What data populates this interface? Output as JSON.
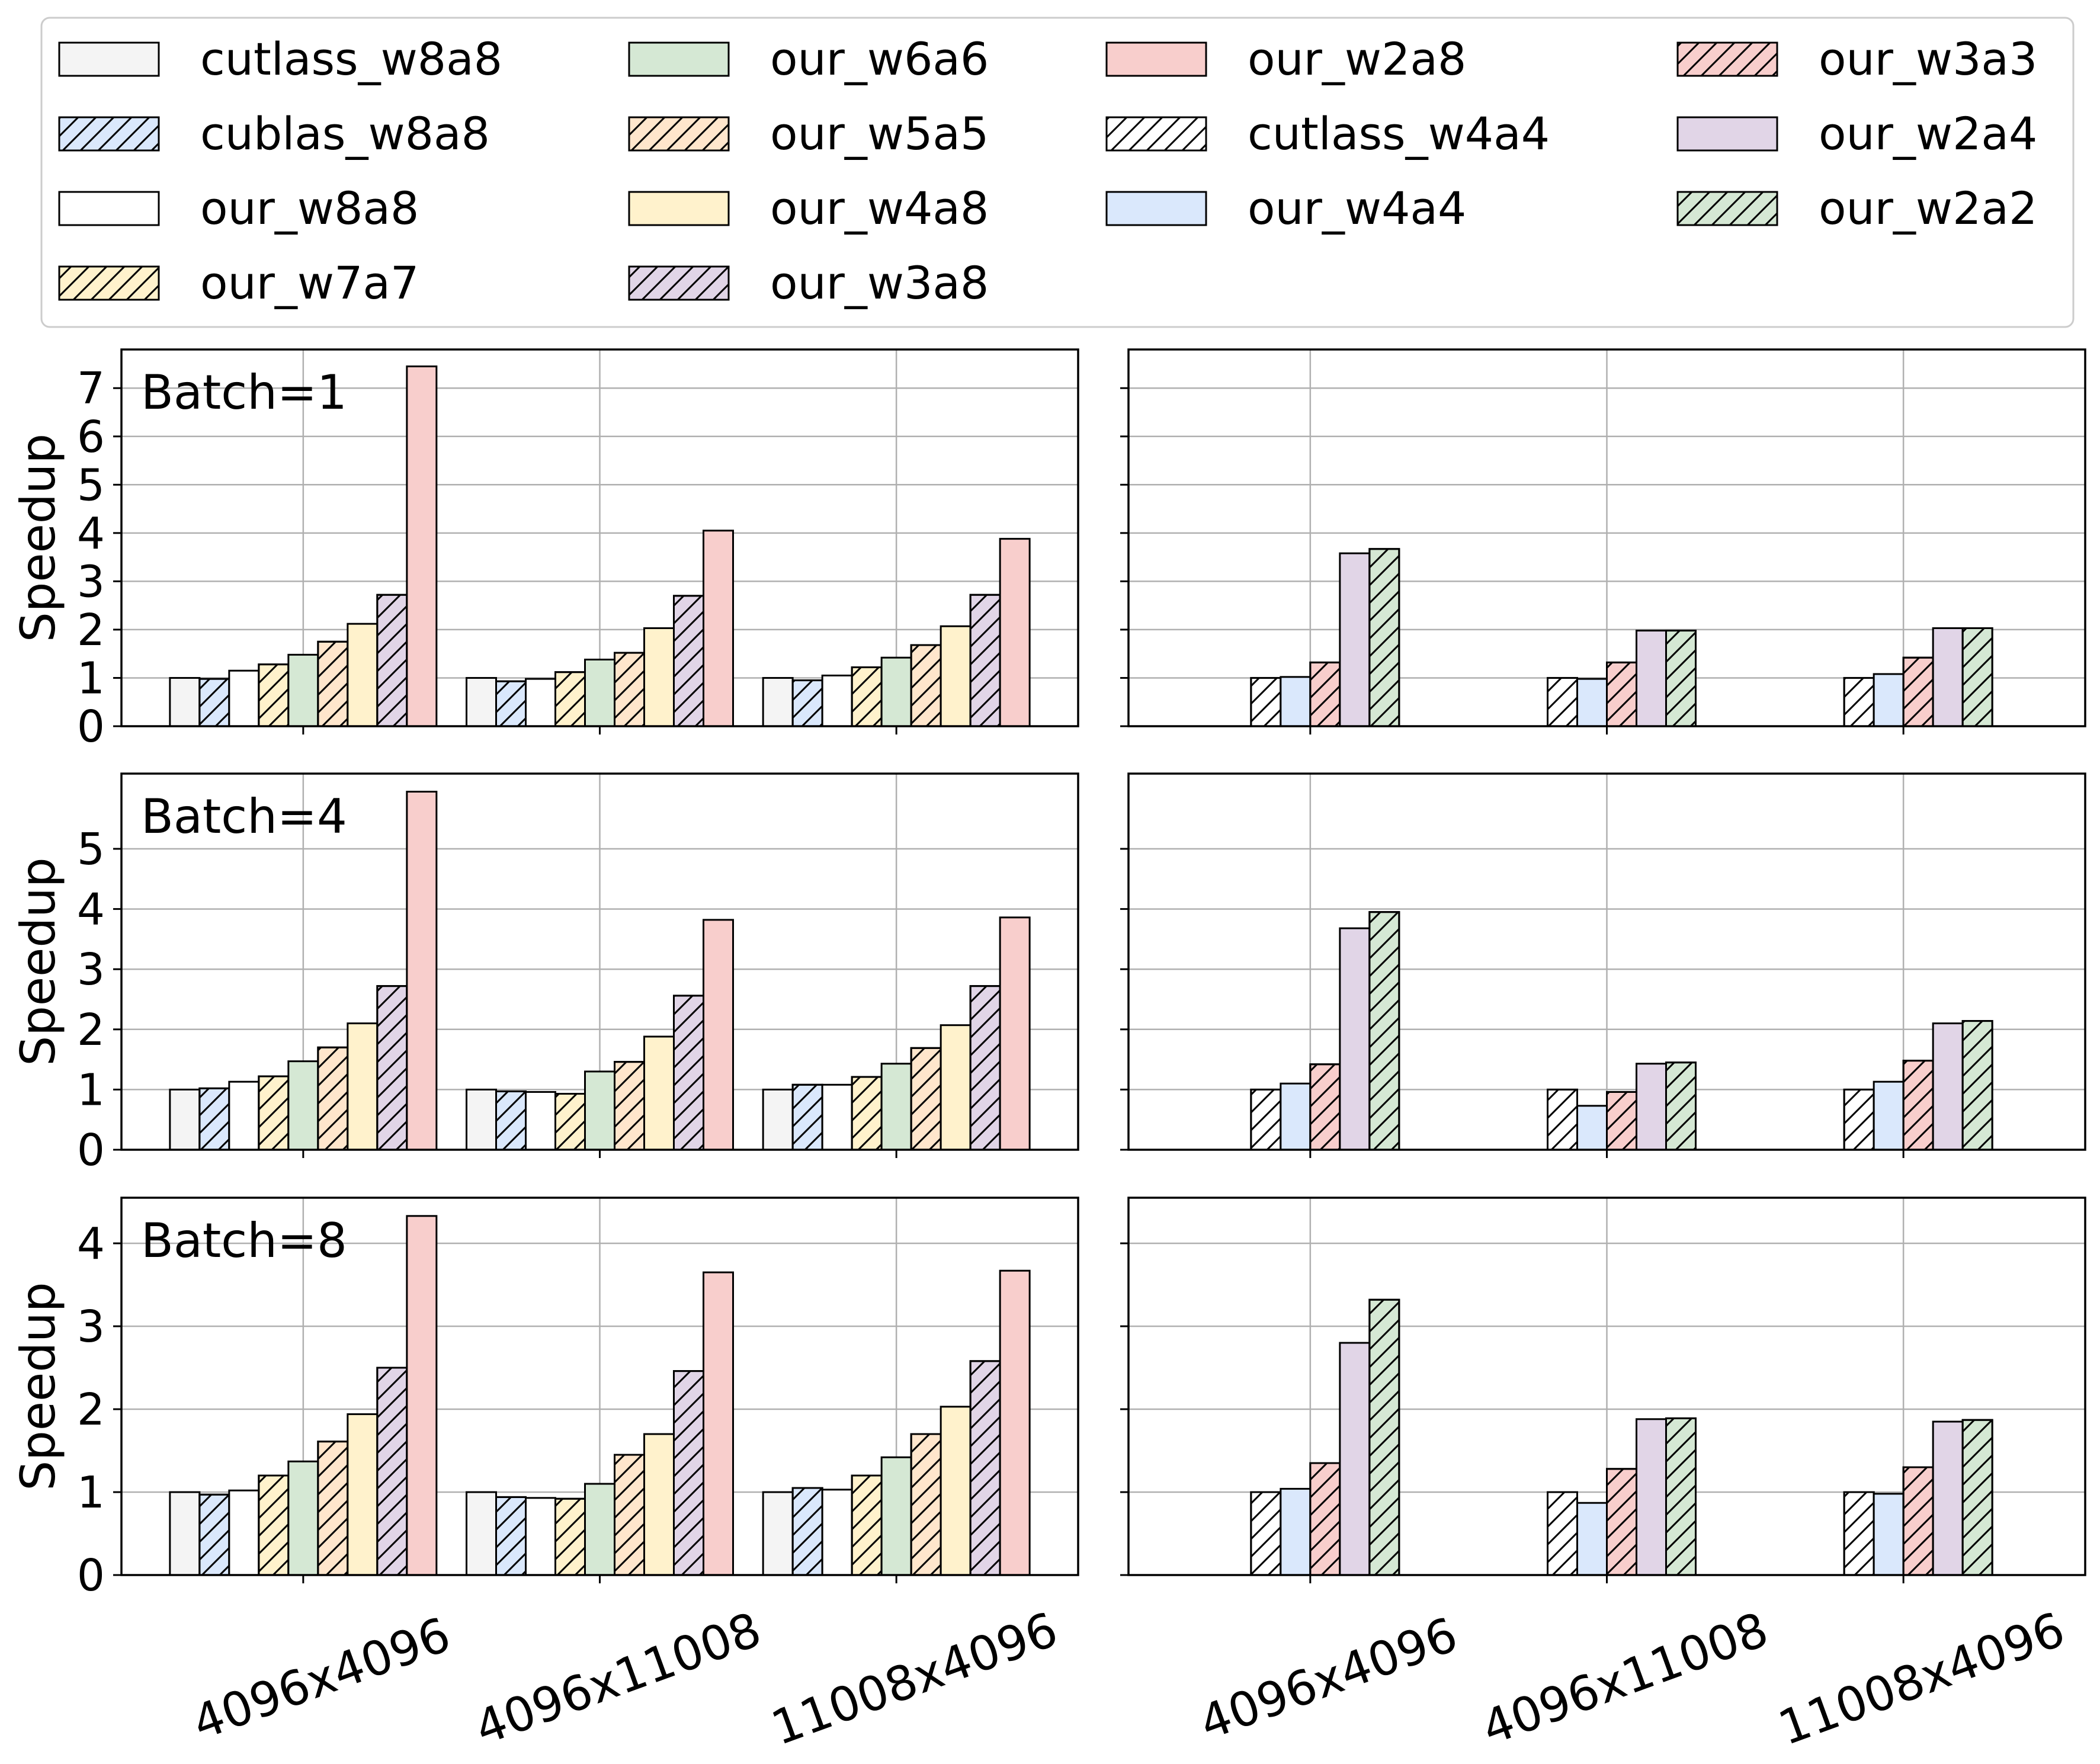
{
  "legend": {
    "placement": "top",
    "entries": [
      {
        "key": "cutlass_w8a8",
        "label": "cutlass_w8a8",
        "color": "#f4f4f4",
        "hatch": false
      },
      {
        "key": "cublas_w8a8",
        "label": "cublas_w8a8",
        "color": "#dae8fc",
        "hatch": true
      },
      {
        "key": "our_w8a8",
        "label": "our_w8a8",
        "color": "#ffffff",
        "hatch": false
      },
      {
        "key": "our_w7a7",
        "label": "our_w7a7",
        "color": "#fff2cc",
        "hatch": true
      },
      {
        "key": "our_w6a6",
        "label": "our_w6a6",
        "color": "#d5e8d4",
        "hatch": false
      },
      {
        "key": "our_w5a5",
        "label": "our_w5a5",
        "color": "#ffe6cc",
        "hatch": true
      },
      {
        "key": "our_w4a8",
        "label": "our_w4a8",
        "color": "#fff2cc",
        "hatch": false
      },
      {
        "key": "our_w3a8",
        "label": "our_w3a8",
        "color": "#e1d5e7",
        "hatch": true
      },
      {
        "key": "our_w2a8",
        "label": "our_w2a8",
        "color": "#f8cecc",
        "hatch": false
      },
      {
        "key": "cutlass_w4a4",
        "label": "cutlass_w4a4",
        "color": "#ffffff",
        "hatch": true
      },
      {
        "key": "our_w4a4",
        "label": "our_w4a4",
        "color": "#dae8fc",
        "hatch": false
      },
      {
        "key": "our_w3a3",
        "label": "our_w3a3",
        "color": "#f8cecc",
        "hatch": true
      },
      {
        "key": "our_w2a4",
        "label": "our_w2a4",
        "color": "#e1d5e7",
        "hatch": false
      },
      {
        "key": "our_w2a2",
        "label": "our_w2a2",
        "color": "#d5e8d4",
        "hatch": true
      }
    ]
  },
  "chart_data": [
    {
      "type": "bar",
      "panel": "left",
      "annotation": "Batch=1",
      "ylabel": "Speedup",
      "xlabel": "",
      "ylim": [
        0,
        7.8
      ],
      "yticks": [
        0,
        1,
        2,
        3,
        4,
        5,
        6,
        7
      ],
      "grid": true,
      "categories": [
        "4096x4096",
        "4096x11008",
        "11008x4096"
      ],
      "series": [
        {
          "key": "cutlass_w8a8",
          "values": [
            1.0,
            1.0,
            1.0
          ]
        },
        {
          "key": "cublas_w8a8",
          "values": [
            0.98,
            0.93,
            0.95
          ]
        },
        {
          "key": "our_w8a8",
          "values": [
            1.15,
            0.98,
            1.05
          ]
        },
        {
          "key": "our_w7a7",
          "values": [
            1.28,
            1.12,
            1.22
          ]
        },
        {
          "key": "our_w6a6",
          "values": [
            1.48,
            1.38,
            1.42
          ]
        },
        {
          "key": "our_w5a5",
          "values": [
            1.75,
            1.52,
            1.68
          ]
        },
        {
          "key": "our_w4a8",
          "values": [
            2.12,
            2.03,
            2.07
          ]
        },
        {
          "key": "our_w3a8",
          "values": [
            2.72,
            2.7,
            2.72
          ]
        },
        {
          "key": "our_w2a8",
          "values": [
            7.45,
            4.05,
            3.88
          ]
        }
      ]
    },
    {
      "type": "bar",
      "panel": "right",
      "annotation": "",
      "ylabel": "",
      "xlabel": "",
      "ylim": [
        0,
        7.8
      ],
      "yticks": [
        0,
        1,
        2,
        3,
        4,
        5,
        6,
        7
      ],
      "grid": true,
      "categories": [
        "4096x4096",
        "4096x11008",
        "11008x4096"
      ],
      "series": [
        {
          "key": "cutlass_w4a4",
          "values": [
            1.0,
            1.0,
            1.0
          ]
        },
        {
          "key": "our_w4a4",
          "values": [
            1.02,
            0.98,
            1.08
          ]
        },
        {
          "key": "our_w3a3",
          "values": [
            1.32,
            1.32,
            1.42
          ]
        },
        {
          "key": "our_w2a4",
          "values": [
            3.58,
            1.98,
            2.03
          ]
        },
        {
          "key": "our_w2a2",
          "values": [
            3.67,
            1.98,
            2.03
          ]
        }
      ]
    },
    {
      "type": "bar",
      "panel": "left",
      "annotation": "Batch=4",
      "ylabel": "Speedup",
      "xlabel": "",
      "ylim": [
        0,
        6.25
      ],
      "yticks": [
        0,
        1,
        2,
        3,
        4,
        5
      ],
      "grid": true,
      "categories": [
        "4096x4096",
        "4096x11008",
        "11008x4096"
      ],
      "series": [
        {
          "key": "cutlass_w8a8",
          "values": [
            1.0,
            1.0,
            1.0
          ]
        },
        {
          "key": "cublas_w8a8",
          "values": [
            1.02,
            0.97,
            1.08
          ]
        },
        {
          "key": "our_w8a8",
          "values": [
            1.13,
            0.96,
            1.08
          ]
        },
        {
          "key": "our_w7a7",
          "values": [
            1.22,
            0.93,
            1.21
          ]
        },
        {
          "key": "our_w6a6",
          "values": [
            1.47,
            1.3,
            1.43
          ]
        },
        {
          "key": "our_w5a5",
          "values": [
            1.7,
            1.46,
            1.69
          ]
        },
        {
          "key": "our_w4a8",
          "values": [
            2.1,
            1.88,
            2.07
          ]
        },
        {
          "key": "our_w3a8",
          "values": [
            2.72,
            2.56,
            2.72
          ]
        },
        {
          "key": "our_w2a8",
          "values": [
            5.95,
            3.82,
            3.86
          ]
        }
      ]
    },
    {
      "type": "bar",
      "panel": "right",
      "annotation": "",
      "ylabel": "",
      "xlabel": "",
      "ylim": [
        0,
        6.25
      ],
      "yticks": [
        0,
        1,
        2,
        3,
        4,
        5
      ],
      "grid": true,
      "categories": [
        "4096x4096",
        "4096x11008",
        "11008x4096"
      ],
      "series": [
        {
          "key": "cutlass_w4a4",
          "values": [
            1.0,
            1.0,
            1.0
          ]
        },
        {
          "key": "our_w4a4",
          "values": [
            1.1,
            0.73,
            1.13
          ]
        },
        {
          "key": "our_w3a3",
          "values": [
            1.42,
            0.96,
            1.48
          ]
        },
        {
          "key": "our_w2a4",
          "values": [
            3.68,
            1.43,
            2.1
          ]
        },
        {
          "key": "our_w2a2",
          "values": [
            3.95,
            1.45,
            2.14
          ]
        }
      ]
    },
    {
      "type": "bar",
      "panel": "left",
      "annotation": "Batch=8",
      "ylabel": "Speedup",
      "xlabel": "",
      "ylim": [
        0,
        4.55
      ],
      "yticks": [
        0,
        1,
        2,
        3,
        4
      ],
      "grid": true,
      "categories": [
        "4096x4096",
        "4096x11008",
        "11008x4096"
      ],
      "series": [
        {
          "key": "cutlass_w8a8",
          "values": [
            1.0,
            1.0,
            1.0
          ]
        },
        {
          "key": "cublas_w8a8",
          "values": [
            0.97,
            0.94,
            1.05
          ]
        },
        {
          "key": "our_w8a8",
          "values": [
            1.02,
            0.93,
            1.03
          ]
        },
        {
          "key": "our_w7a7",
          "values": [
            1.2,
            0.92,
            1.2
          ]
        },
        {
          "key": "our_w6a6",
          "values": [
            1.37,
            1.1,
            1.42
          ]
        },
        {
          "key": "our_w5a5",
          "values": [
            1.61,
            1.45,
            1.7
          ]
        },
        {
          "key": "our_w4a8",
          "values": [
            1.94,
            1.7,
            2.03
          ]
        },
        {
          "key": "our_w3a8",
          "values": [
            2.5,
            2.46,
            2.58
          ]
        },
        {
          "key": "our_w2a8",
          "values": [
            4.33,
            3.65,
            3.67
          ]
        }
      ]
    },
    {
      "type": "bar",
      "panel": "right",
      "annotation": "",
      "ylabel": "",
      "xlabel": "",
      "ylim": [
        0,
        4.55
      ],
      "yticks": [
        0,
        1,
        2,
        3,
        4
      ],
      "grid": true,
      "categories": [
        "4096x4096",
        "4096x11008",
        "11008x4096"
      ],
      "series": [
        {
          "key": "cutlass_w4a4",
          "values": [
            1.0,
            1.0,
            1.0
          ]
        },
        {
          "key": "our_w4a4",
          "values": [
            1.04,
            0.87,
            0.98
          ]
        },
        {
          "key": "our_w3a3",
          "values": [
            1.35,
            1.28,
            1.3
          ]
        },
        {
          "key": "our_w2a4",
          "values": [
            2.8,
            1.88,
            1.85
          ]
        },
        {
          "key": "our_w2a2",
          "values": [
            3.32,
            1.89,
            1.87
          ]
        }
      ]
    }
  ]
}
